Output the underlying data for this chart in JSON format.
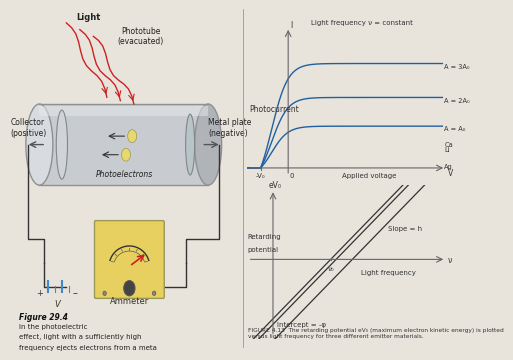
{
  "background_color_left": "#c8c0b0",
  "background_color_right": "#e8e4dc",
  "fig_width": 4.5,
  "fig_height": 3.38,
  "top_graph": {
    "title": "Photocurrent",
    "subtitle": "Light frequency ν = constant",
    "xlabel": "Applied voltage",
    "ylabel": "I",
    "x_neg_label": "-V₀",
    "x_zero_label": "0",
    "x_pos_label": "V",
    "curves": [
      {
        "label": "A = 3A₀",
        "saturation": 0.8,
        "color": "#2060a0"
      },
      {
        "label": "A = 2A₀",
        "saturation": 0.54,
        "color": "#2060a0"
      },
      {
        "label": "A = A₀",
        "saturation": 0.32,
        "color": "#2060a0"
      }
    ]
  },
  "bottom_graph": {
    "ylabel_top": "eV₀",
    "ylabel_left_top": "Retarding",
    "ylabel_left_bot": "potential",
    "xlabel": "Light frequency",
    "x_thresh": "ν₀",
    "x_axis_label": "ν",
    "slope_label": "Slope = h",
    "intercept_label": "Intercept = -φ",
    "lines": [
      {
        "label": "Ca",
        "thresh": 1.6,
        "color": "#333333"
      },
      {
        "label": "Li",
        "thresh": 1.75,
        "color": "#333333"
      },
      {
        "label": "Ag",
        "thresh": 2.2,
        "color": "#333333"
      }
    ],
    "slope": 0.7
  },
  "caption_top": "FIGURE 4.13  The retarding potential eV₀ (maximum electron kinetic energy) is plotted",
  "caption_bot": "versus light frequency for three different emitter materials."
}
